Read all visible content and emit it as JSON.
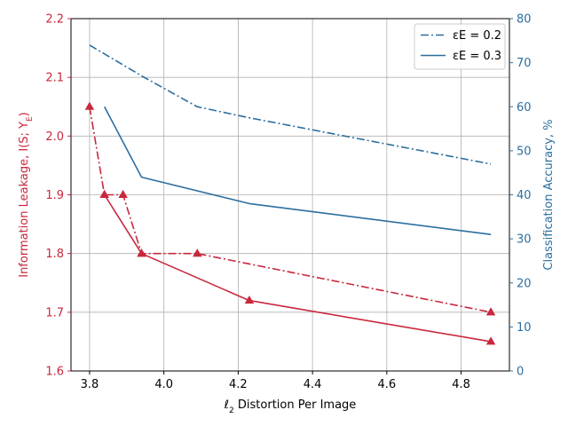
{
  "chart_data": {
    "type": "line",
    "title": "",
    "xlabel": "ℓ2 Distortion Per Image",
    "ylabel_left": "Information Leakage, I(S; YE)",
    "ylabel_right": "Classification Accuracy, %",
    "xlim": [
      3.75,
      4.93
    ],
    "ylim_left": [
      1.6,
      2.2
    ],
    "ylim_right": [
      0,
      80
    ],
    "x_ticks": [
      "3.8",
      "4.0",
      "4.2",
      "4.4",
      "4.6",
      "4.8"
    ],
    "y_left_ticks": [
      "1.6",
      "1.7",
      "1.8",
      "1.9",
      "2.0",
      "2.1",
      "2.2"
    ],
    "y_right_ticks": [
      "0",
      "10",
      "20",
      "30",
      "40",
      "50",
      "60",
      "70",
      "80"
    ],
    "grid": true,
    "legend_placement": "top-right",
    "colors": {
      "leakage": "#c8283c",
      "accuracy": "#2c6e9e"
    },
    "series": [
      {
        "legend": "εE = 0.2",
        "axis": "left",
        "style": "dashdot",
        "x": [
          3.8,
          3.84,
          3.89,
          3.94,
          4.09,
          4.88
        ],
        "y": [
          2.05,
          1.9,
          1.9,
          1.8,
          1.8,
          1.7
        ]
      },
      {
        "legend": "εE = 0.3",
        "axis": "left",
        "style": "solid",
        "x": [
          3.84,
          3.94,
          4.23,
          4.88
        ],
        "y": [
          1.9,
          1.8,
          1.72,
          1.65
        ]
      },
      {
        "legend": "εE = 0.2",
        "axis": "right",
        "style": "dashdot",
        "x": [
          3.8,
          3.94,
          4.09,
          4.23,
          4.88
        ],
        "y": [
          74,
          67,
          60,
          57.5,
          47
        ]
      },
      {
        "legend": "εE = 0.3",
        "axis": "right",
        "style": "solid",
        "x": [
          3.84,
          3.94,
          4.23,
          4.88
        ],
        "y": [
          60,
          44,
          38,
          31
        ]
      }
    ],
    "legend_entries": [
      "εE = 0.2",
      "εE = 0.3"
    ]
  }
}
